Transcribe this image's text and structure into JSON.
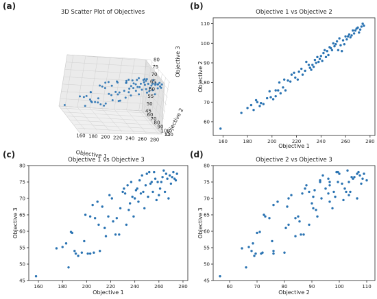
{
  "colors": {
    "point": "#2a73b2",
    "axis": "#222222",
    "pane": "#ececec",
    "grid": "#d0d0d0"
  },
  "chart_data": [
    {
      "panel": "(a)",
      "type": "scatter",
      "title": "3D Scatter Plot of Objectives",
      "xlabel": "Objective 1",
      "ylabel": "Objective 2",
      "zlabel": "Objective 3",
      "xticks": [
        "160",
        "180",
        "200",
        "220",
        "240",
        "260",
        "280"
      ],
      "yticks": [
        "60",
        "70",
        "80",
        "90",
        "100",
        "110"
      ],
      "zticks": [
        "45",
        "50",
        "55",
        "60",
        "65",
        "70",
        "75",
        "80"
      ],
      "xlim": [
        150,
        285
      ],
      "ylim": [
        55,
        113
      ],
      "zlim": [
        45,
        80
      ],
      "grid": true
    },
    {
      "panel": "(b)",
      "type": "scatter",
      "title": "Objective 1 vs Objective 2",
      "xlabel": "Objective 1",
      "ylabel": "Objective 2",
      "xticks": [
        160,
        180,
        200,
        220,
        240,
        260,
        280
      ],
      "yticks": [
        60,
        70,
        80,
        90,
        100,
        110
      ],
      "xlim": [
        152,
        284
      ],
      "ylim": [
        53,
        113
      ],
      "grid": false
    },
    {
      "panel": "(c)",
      "type": "scatter",
      "title": "Objective 1 vs Objective 3",
      "xlabel": "Objective 1",
      "ylabel": "Objective 3",
      "xticks": [
        160,
        180,
        200,
        220,
        240,
        260,
        280
      ],
      "yticks": [
        45,
        50,
        55,
        60,
        65,
        70,
        75,
        80
      ],
      "xlim": [
        152,
        284
      ],
      "ylim": [
        45,
        80
      ],
      "grid": false
    },
    {
      "panel": "(d)",
      "type": "scatter",
      "title": "Objective 2 vs Objective 3",
      "xlabel": "Objective 2",
      "ylabel": "Objective 3",
      "xticks": [
        60,
        70,
        80,
        90,
        100,
        110
      ],
      "yticks": [
        45,
        50,
        55,
        60,
        65,
        70,
        75,
        80
      ],
      "xlim": [
        54,
        113
      ],
      "ylim": [
        45,
        80
      ],
      "grid": false
    }
  ],
  "points": [
    [
      158,
      56.5,
      46.3
    ],
    [
      175,
      64.5,
      54.8
    ],
    [
      180,
      67.0,
      55.2
    ],
    [
      183,
      68.5,
      56.3
    ],
    [
      185,
      66.0,
      49.0
    ],
    [
      187,
      71.0,
      59.8
    ],
    [
      188,
      70.0,
      59.5
    ],
    [
      190,
      68.0,
      54.0
    ],
    [
      191,
      69.5,
      53.2
    ],
    [
      193,
      69.0,
      52.5
    ],
    [
      196,
      72.0,
      53.5
    ],
    [
      198,
      75.5,
      57.0
    ],
    [
      199,
      72.5,
      65.0
    ],
    [
      201,
      71.5,
      53.2
    ],
    [
      203,
      73.0,
      64.5
    ],
    [
      203,
      76.0,
      53.2
    ],
    [
      205,
      76.0,
      68.0
    ],
    [
      206,
      80.0,
      53.5
    ],
    [
      207,
      74.5,
      64.0
    ],
    [
      209,
      77.5,
      69.0
    ],
    [
      210,
      81.5,
      62.0
    ],
    [
      211,
      76.0,
      54.0
    ],
    [
      213,
      81.0,
      67.5
    ],
    [
      215,
      80.5,
      61.0
    ],
    [
      216,
      84.0,
      58.5
    ],
    [
      218,
      85.0,
      64.5
    ],
    [
      219,
      82.5,
      71.0
    ],
    [
      221,
      81.5,
      70.0
    ],
    [
      222,
      85.5,
      63.0
    ],
    [
      224,
      87.0,
      59.0
    ],
    [
      225,
      84.0,
      64.0
    ],
    [
      227,
      86.0,
      59.0
    ],
    [
      228,
      90.5,
      67.0
    ],
    [
      230,
      89.0,
      72.0
    ],
    [
      231,
      87.5,
      73.0
    ],
    [
      232,
      86.5,
      71.5
    ],
    [
      233,
      89.0,
      62.0
    ],
    [
      234,
      88.0,
      74.0
    ],
    [
      235,
      91.5,
      66.5
    ],
    [
      236,
      90.0,
      68.5
    ],
    [
      237,
      93.0,
      75.0
    ],
    [
      238,
      90.5,
      70.5
    ],
    [
      239,
      92.0,
      64.5
    ],
    [
      240,
      93.5,
      70.0
    ],
    [
      241,
      91.0,
      72.5
    ],
    [
      242,
      95.0,
      73.0
    ],
    [
      243,
      96.5,
      69.0
    ],
    [
      244,
      93.0,
      75.5
    ],
    [
      245,
      96.0,
      71.5
    ],
    [
      246,
      94.0,
      77.0
    ],
    [
      247,
      98.0,
      72.0
    ],
    [
      248,
      97.5,
      67.0
    ],
    [
      249,
      96.5,
      74.0
    ],
    [
      250,
      100.0,
      77.5
    ],
    [
      251,
      98.5,
      70.5
    ],
    [
      252,
      99.5,
      78.0
    ],
    [
      253,
      101.0,
      74.5
    ],
    [
      254,
      96.5,
      75.0
    ],
    [
      255,
      102.5,
      72.0
    ],
    [
      256,
      99.0,
      78.0
    ],
    [
      257,
      96.0,
      76.0
    ],
    [
      258,
      101.5,
      69.5
    ],
    [
      259,
      99.5,
      75.0
    ],
    [
      260,
      103.5,
      71.0
    ],
    [
      261,
      102.0,
      73.0
    ],
    [
      262,
      103.5,
      75.0
    ],
    [
      263,
      104.5,
      76.5
    ],
    [
      264,
      103.0,
      78.5
    ],
    [
      265,
      104.0,
      72.0
    ],
    [
      266,
      106.5,
      77.5
    ],
    [
      267,
      105.0,
      76.0
    ],
    [
      268,
      106.5,
      70.0
    ],
    [
      269,
      107.5,
      77.0
    ],
    [
      270,
      108.0,
      74.5
    ],
    [
      271,
      105.5,
      76.5
    ],
    [
      272,
      107.0,
      78.0
    ],
    [
      273,
      108.5,
      76.0
    ],
    [
      274,
      110.0,
      75.5
    ],
    [
      275,
      109.0,
      77.5
    ]
  ]
}
